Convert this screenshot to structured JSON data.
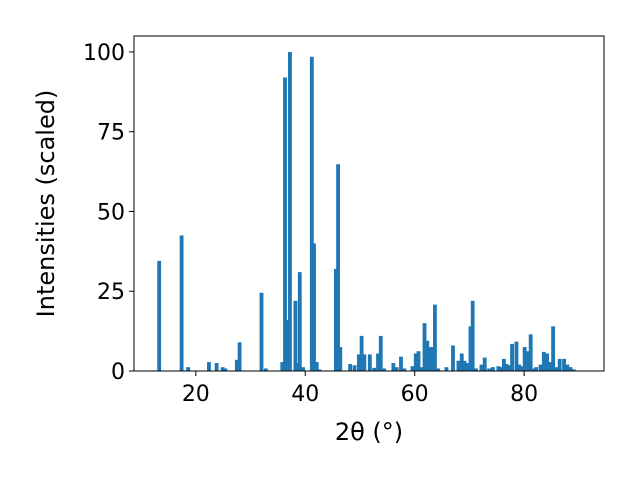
{
  "chart_data": {
    "type": "bar",
    "title": "",
    "xlabel": "2θ (°)",
    "ylabel": "Intensities (scaled)",
    "xlim": [
      8.7,
      94.6
    ],
    "ylim": [
      0,
      105
    ],
    "xticks": [
      20,
      40,
      60,
      80
    ],
    "yticks": [
      0,
      25,
      50,
      75,
      100
    ],
    "xtick_labels": [
      "20",
      "40",
      "60",
      "80"
    ],
    "ytick_labels": [
      "0",
      "25",
      "50",
      "75",
      "100"
    ],
    "bar_width": 0.7,
    "color": "#1f77b4",
    "grid": false,
    "x": [
      13.3,
      17.4,
      18.6,
      22.4,
      23.8,
      24.9,
      25.4,
      27.5,
      28.0,
      32.0,
      32.8,
      35.8,
      36.3,
      36.8,
      37.2,
      38.2,
      38.6,
      39.0,
      39.6,
      41.2,
      41.6,
      42.1,
      42.6,
      45.6,
      46.0,
      46.4,
      48.2,
      49.0,
      49.8,
      50.3,
      50.8,
      51.8,
      52.6,
      53.3,
      53.8,
      54.4,
      56.1,
      56.7,
      57.5,
      58.1,
      59.6,
      60.2,
      60.7,
      61.3,
      61.8,
      62.3,
      62.8,
      63.2,
      63.7,
      64.3,
      65.8,
      67.0,
      68.0,
      68.6,
      69.1,
      69.7,
      70.2,
      70.6,
      71.2,
      72.2,
      72.8,
      73.6,
      74.3,
      75.3,
      75.8,
      76.3,
      76.8,
      77.2,
      77.8,
      78.6,
      79.1,
      79.6,
      80.1,
      80.6,
      81.2,
      81.8,
      82.2,
      83.0,
      83.6,
      84.2,
      84.7,
      85.3,
      85.9,
      86.5,
      87.3,
      87.9,
      88.5,
      89.1
    ],
    "values": [
      34.5,
      42.5,
      1.2,
      2.8,
      2.5,
      1.2,
      0.8,
      3.5,
      9.0,
      24.5,
      0.8,
      2.8,
      92.0,
      16.0,
      100.0,
      22.0,
      2.5,
      31.0,
      1.2,
      98.5,
      40.0,
      2.8,
      0.5,
      32.0,
      64.8,
      7.5,
      2.2,
      1.8,
      5.2,
      11.0,
      5.2,
      5.2,
      1.0,
      5.5,
      11.0,
      0.8,
      2.5,
      1.2,
      4.5,
      0.8,
      1.5,
      5.5,
      6.2,
      1.2,
      15.0,
      9.5,
      7.5,
      7.5,
      20.8,
      0.8,
      1.2,
      8.0,
      3.2,
      5.5,
      3.2,
      2.5,
      14.0,
      22.0,
      0.8,
      2.0,
      4.2,
      0.8,
      1.2,
      1.5,
      1.2,
      3.8,
      2.2,
      1.8,
      8.5,
      9.2,
      2.0,
      1.5,
      7.5,
      6.2,
      11.5,
      0.8,
      1.2,
      2.0,
      6.0,
      5.5,
      2.8,
      14.0,
      1.2,
      3.8,
      3.8,
      2.0,
      1.2,
      0.5
    ]
  }
}
